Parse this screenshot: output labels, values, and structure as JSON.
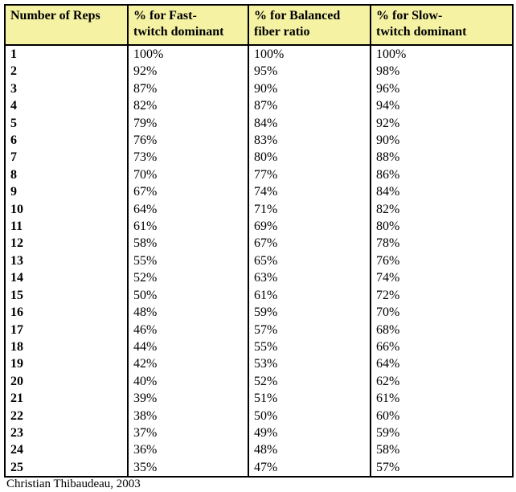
{
  "table": {
    "columns": [
      {
        "label": "Number of Reps",
        "lines": [
          "Number of Reps"
        ]
      },
      {
        "label": "% for Fast-twitch dominant",
        "lines": [
          "% for Fast-",
          "twitch dominant"
        ]
      },
      {
        "label": "% for Balanced fiber ratio",
        "lines": [
          "% for Balanced",
          "fiber ratio"
        ]
      },
      {
        "label": "% for Slow-twitch dominant",
        "lines": [
          "% for Slow-",
          "twitch dominant"
        ]
      }
    ],
    "rows": [
      [
        "1",
        "100%",
        "100%",
        "100%"
      ],
      [
        "2",
        "92%",
        "95%",
        "98%"
      ],
      [
        "3",
        "87%",
        "90%",
        "96%"
      ],
      [
        "4",
        "82%",
        "87%",
        "94%"
      ],
      [
        "5",
        "79%",
        "84%",
        "92%"
      ],
      [
        "6",
        "76%",
        "83%",
        "90%"
      ],
      [
        "7",
        "73%",
        "80%",
        "88%"
      ],
      [
        "8",
        "70%",
        "77%",
        "86%"
      ],
      [
        "9",
        "67%",
        "74%",
        "84%"
      ],
      [
        "10",
        "64%",
        "71%",
        "82%"
      ],
      [
        "11",
        "61%",
        "69%",
        "80%"
      ],
      [
        "12",
        "58%",
        "67%",
        "78%"
      ],
      [
        "13",
        "55%",
        "65%",
        "76%"
      ],
      [
        "14",
        "52%",
        "63%",
        "74%"
      ],
      [
        "15",
        "50%",
        "61%",
        "72%"
      ],
      [
        "16",
        "48%",
        "59%",
        "70%"
      ],
      [
        "17",
        "46%",
        "57%",
        "68%"
      ],
      [
        "18",
        "44%",
        "55%",
        "66%"
      ],
      [
        "19",
        "42%",
        "53%",
        "64%"
      ],
      [
        "20",
        "40%",
        "52%",
        "62%"
      ],
      [
        "21",
        "39%",
        "51%",
        "61%"
      ],
      [
        "22",
        "38%",
        "50%",
        "60%"
      ],
      [
        "23",
        "37%",
        "49%",
        "59%"
      ],
      [
        "24",
        "36%",
        "48%",
        "58%"
      ],
      [
        "25",
        "35%",
        "47%",
        "57%"
      ]
    ]
  },
  "footer": {
    "credit": "Christian Thibaudeau, 2003"
  },
  "colors": {
    "header_background": "#f5f2a3",
    "grid_border": "#000000",
    "text": "#000000",
    "page_background": "#ffffff"
  }
}
